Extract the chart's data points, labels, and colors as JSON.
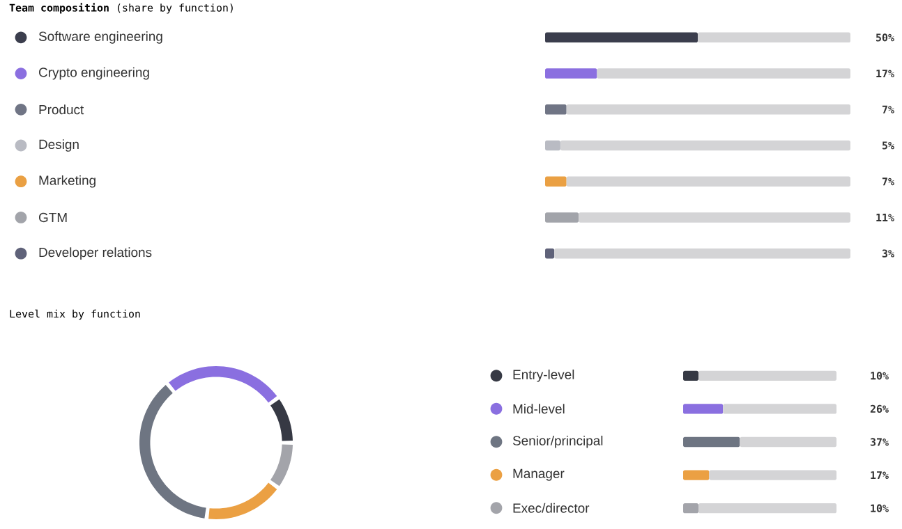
{
  "chart_data": [
    {
      "type": "bar",
      "title": "**Team composition** (share by function)",
      "orientation": "horizontal",
      "stacked": true,
      "xlim": [
        0,
        100
      ],
      "tick_labels": "y",
      "categories": [
        "Software engineering",
        "Crypto engineering",
        "Product",
        "Design",
        "Marketing",
        "GTM",
        "Developer relations"
      ],
      "series": [
        {
          "colors": [
            "#3b3e4d",
            "#8b6fe0",
            "#707585",
            "#b9bbc3",
            "#eaa043",
            "#a2a4aa",
            "#5f6279"
          ],
          "values": [
            50,
            17,
            7,
            5,
            7,
            11,
            3
          ],
          "value_labels": [
            "50%",
            "17%",
            "7%",
            "5%",
            "7%",
            "11%",
            "3%"
          ]
        },
        {
          "color": "#d4d4d6",
          "values": [
            50,
            83,
            93,
            95,
            93,
            89,
            97
          ]
        }
      ]
    },
    {
      "type": "donut",
      "title": "Level mix by function",
      "legend": "right",
      "categories": [
        "Entry-level",
        "Mid-level",
        "Senior/principal",
        "Manager",
        "Exec/director"
      ],
      "values": [
        10,
        26,
        37,
        17,
        10
      ],
      "colors": [
        "#363944",
        "#8a6fe0",
        "#6e7582",
        "#eba043",
        "#a3a4aa"
      ]
    },
    {
      "type": "bar",
      "orientation": "horizontal",
      "stacked": true,
      "xlim": [
        0,
        100
      ],
      "tick_labels": false,
      "categories": [
        null,
        null,
        null,
        null,
        null
      ],
      "series": [
        {
          "colors": [
            "#363944",
            "#8a6fe0",
            "#6e7582",
            "#eba043",
            "#a3a4aa"
          ],
          "values": [
            10,
            26,
            37,
            17,
            10
          ],
          "value_labels": [
            "10%",
            "26%",
            "37%",
            "17%",
            "10%"
          ]
        },
        {
          "color": "#d4d4d6",
          "values": [
            90,
            74,
            63,
            83,
            90
          ]
        }
      ]
    }
  ]
}
